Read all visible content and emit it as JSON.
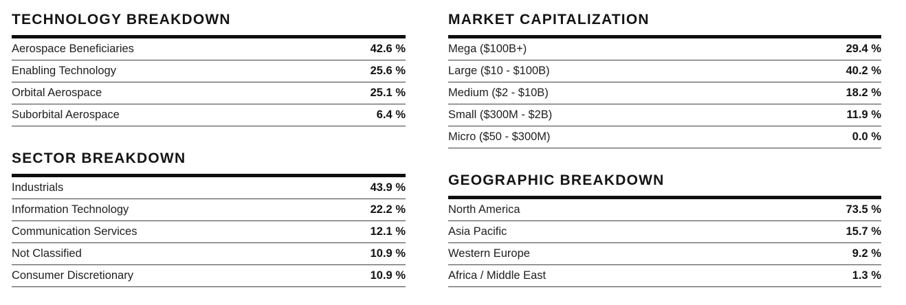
{
  "colors": {
    "background": "#ffffff",
    "text": "#1c1c1c",
    "title_rule": "#0e0e0e",
    "row_rule": "#3f3f3f"
  },
  "tables": {
    "technology": {
      "title": "TECHNOLOGY BREAKDOWN",
      "rows": [
        {
          "label": "Aerospace Beneficiaries",
          "value": "42.6 %"
        },
        {
          "label": "Enabling Technology",
          "value": "25.6 %"
        },
        {
          "label": "Orbital Aerospace",
          "value": "25.1 %"
        },
        {
          "label": "Suborbital Aerospace",
          "value": "6.4 %"
        }
      ]
    },
    "sector": {
      "title": "SECTOR BREAKDOWN",
      "rows": [
        {
          "label": "Industrials",
          "value": "43.9 %"
        },
        {
          "label": "Information Technology",
          "value": "22.2 %"
        },
        {
          "label": "Communication Services",
          "value": "12.1 %"
        },
        {
          "label": "Not Classified",
          "value": "10.9 %"
        },
        {
          "label": "Consumer Discretionary",
          "value": "10.9 %"
        }
      ]
    },
    "market_cap": {
      "title": "MARKET CAPITALIZATION",
      "rows": [
        {
          "label": "Mega ($100B+)",
          "value": "29.4 %"
        },
        {
          "label": "Large ($10 - $100B)",
          "value": "40.2 %"
        },
        {
          "label": "Medium ($2 - $10B)",
          "value": "18.2 %"
        },
        {
          "label": "Small ($300M - $2B)",
          "value": "11.9 %"
        },
        {
          "label": "Micro ($50 - $300M)",
          "value": "0.0 %"
        }
      ]
    },
    "geographic": {
      "title": "GEOGRAPHIC BREAKDOWN",
      "rows": [
        {
          "label": "North America",
          "value": "73.5 %"
        },
        {
          "label": "Asia Pacific",
          "value": "15.7 %"
        },
        {
          "label": "Western Europe",
          "value": "9.2 %"
        },
        {
          "label": "Africa / Middle East",
          "value": "1.3 %"
        }
      ]
    }
  }
}
